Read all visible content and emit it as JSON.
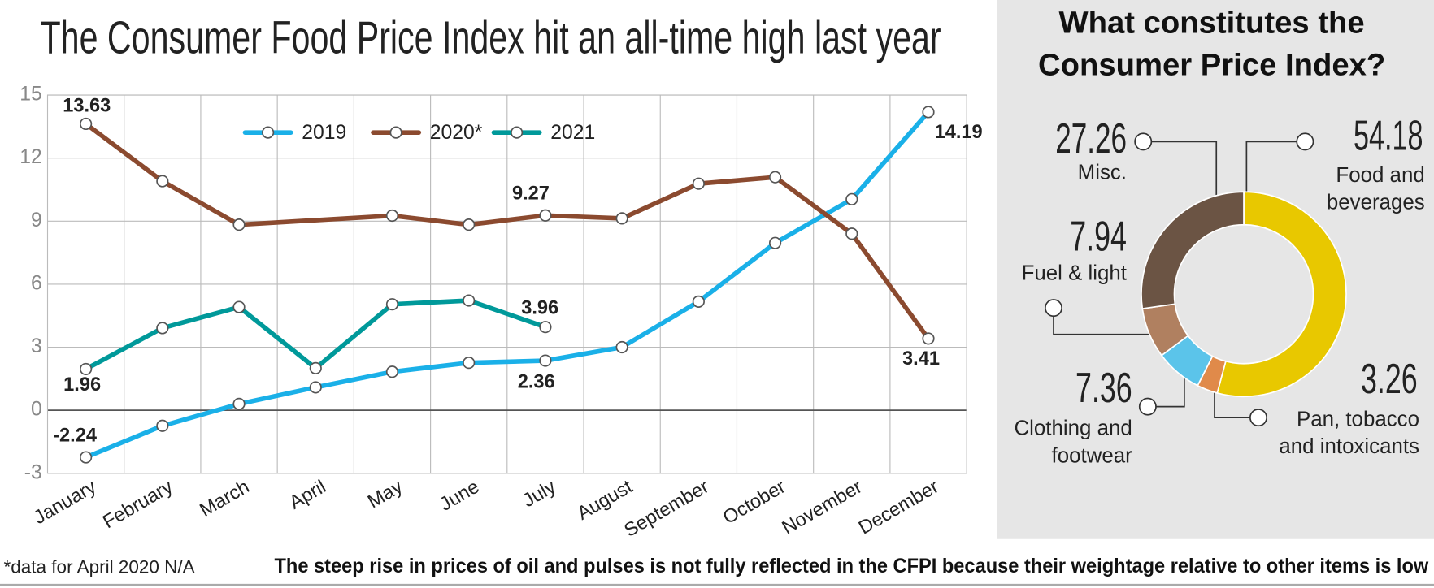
{
  "chart_data": [
    {
      "type": "line",
      "title": "The Consumer Food Price Index hit an all-time high last year",
      "categories": [
        "January",
        "February",
        "March",
        "April",
        "May",
        "June",
        "July",
        "August",
        "September",
        "October",
        "November",
        "December"
      ],
      "series": [
        {
          "name": "2019",
          "color": "#1ab0e8",
          "values": [
            -2.24,
            -0.74,
            0.3,
            1.09,
            1.83,
            2.26,
            2.36,
            3.0,
            5.17,
            7.96,
            10.04,
            14.19
          ],
          "value_labels": [
            "-2.24",
            null,
            null,
            null,
            null,
            null,
            "2.36",
            null,
            null,
            null,
            null,
            "14.19"
          ]
        },
        {
          "name": "2020*",
          "color": "#8b4a2f",
          "values": [
            13.63,
            10.9,
            8.83,
            null,
            9.26,
            8.83,
            9.27,
            9.13,
            10.78,
            11.09,
            8.4,
            3.41
          ],
          "value_labels": [
            "13.63",
            null,
            null,
            null,
            null,
            null,
            "9.27",
            null,
            null,
            null,
            null,
            "3.41"
          ]
        },
        {
          "name": "2021",
          "color": "#00999a",
          "values": [
            1.96,
            3.91,
            4.91,
            2.0,
            5.04,
            5.22,
            3.96,
            null,
            null,
            null,
            null,
            null
          ],
          "value_labels": [
            "1.96",
            null,
            null,
            null,
            null,
            null,
            "3.96",
            null,
            null,
            null,
            null,
            null
          ]
        }
      ],
      "ylim": [
        -3,
        15
      ],
      "yticks": [
        -3,
        0,
        3,
        6,
        9,
        12,
        15
      ],
      "grid": true,
      "legend": "top"
    },
    {
      "type": "donut",
      "title": "What constitutes the Consumer Price Index?",
      "categories": [
        "Food and beverages",
        "Pan, tobacco and intoxicants",
        "Clothing and footwear",
        "Fuel & light",
        "Misc."
      ],
      "values": [
        54.18,
        3.26,
        7.36,
        7.94,
        27.26
      ],
      "colors": [
        "#e8c800",
        "#e08a4a",
        "#5bc4ea",
        "#b08060",
        "#6b5444"
      ]
    }
  ],
  "footnote": "*data for April 2020 N/A",
  "caption": "The steep rise in prices of oil and pulses is not fully reflected in the CFPI because their weightage relative to other items is low"
}
